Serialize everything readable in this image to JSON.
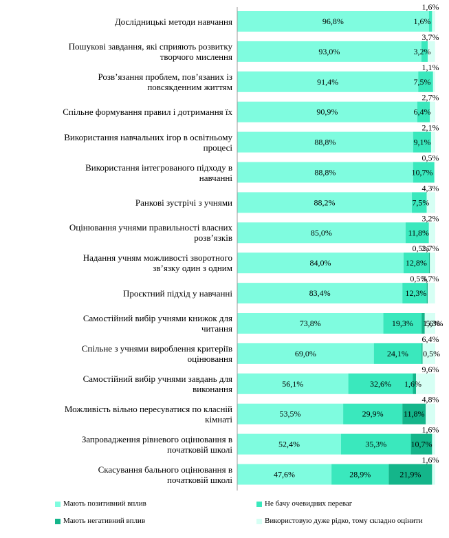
{
  "chart_data": {
    "type": "bar",
    "orientation": "horizontal",
    "stacked": "percent",
    "categories": [
      [
        "Дослідницькі методи навчання"
      ],
      [
        "Пошукові завдання, які сприяють розвитку",
        "творчого мислення"
      ],
      [
        "Розв’язання проблем, пов’язаних із",
        "повсякденним життям"
      ],
      [
        "Спільне формування правил і дотримання їх"
      ],
      [
        "Використання навчальних ігор в освітньому",
        "процесі"
      ],
      [
        "Використання інтегрованого підходу в",
        "навчанні"
      ],
      [
        "Ранкові зустрічі з учнями"
      ],
      [
        "Оцінювання учнями правильності власних",
        "розв’язків"
      ],
      [
        "Надання учням можливості зворотного",
        "зв’язку один з одним"
      ],
      [
        "Проєктний підхід у навчанні"
      ],
      [
        "Самостійний вибір учнями книжок для",
        "читання"
      ],
      [
        "Спільне з учнями вироблення критеріїв",
        "оцінювання"
      ],
      [
        "Самостійний вибір учнями завдань для",
        "виконання"
      ],
      [
        "Можливість вільно пересуватися по класній",
        "кімнаті"
      ],
      [
        "Запровадження рівневого оцінювання в",
        "початковій школі"
      ],
      [
        "Скасування бального оцінювання в",
        "початковій школі"
      ]
    ],
    "series": [
      {
        "name": "Мають позитивний вплив",
        "color": "#7ffcdf",
        "values": [
          96.8,
          93.0,
          91.4,
          90.9,
          88.8,
          88.8,
          88.2,
          85.0,
          84.0,
          83.4,
          73.8,
          69.0,
          56.1,
          53.5,
          52.4,
          47.6
        ],
        "labels": [
          "96,8%",
          "93,0%",
          "91,4%",
          "90,9%",
          "88,8%",
          "88,8%",
          "88,2%",
          "85,0%",
          "84,0%",
          "83,4%",
          "73,8%",
          "69,0%",
          "56,1%",
          "53,5%",
          "52,4%",
          "47,6%"
        ]
      },
      {
        "name": "Не бачу очевидних переваг",
        "color": "#3ae8bd",
        "values": [
          1.6,
          3.2,
          7.5,
          6.4,
          9.1,
          10.7,
          7.5,
          11.8,
          12.8,
          12.3,
          19.3,
          24.1,
          32.6,
          29.9,
          35.3,
          28.9
        ],
        "labels": [
          "1,6%",
          "3,2%",
          "7,5%",
          "6,4%",
          "9,1%",
          "10,7%",
          "7,5%",
          "11,8%",
          "12,8%",
          "12,3%",
          "19,3%",
          "24,1%",
          "32,6%",
          "29,9%",
          "35,3%",
          "28,9%"
        ]
      },
      {
        "name": "Мають негативний вплив",
        "color": "#14b58a",
        "values": [
          0,
          0,
          0,
          0,
          0,
          0,
          0,
          0,
          0.5,
          0.5,
          1.6,
          0.5,
          1.6,
          11.8,
          10.7,
          21.9
        ],
        "labels": [
          "",
          "",
          "",
          "",
          "",
          "",
          "",
          "",
          "0,5%",
          "0,5%",
          "1,6%",
          "0,5%",
          "1,6%",
          "11,8%",
          "10,7%",
          "21,9%"
        ]
      },
      {
        "name": "Використовую дуже рідко, тому складно оцінити",
        "color": "#d6fff4",
        "values": [
          1.6,
          3.7,
          1.1,
          2.7,
          2.1,
          0.5,
          4.3,
          3.2,
          2.7,
          3.7,
          5.3,
          6.4,
          9.6,
          4.8,
          1.6,
          1.6
        ],
        "labels": [
          "1,6%",
          "3,7%",
          "1,1%",
          "2,7%",
          "2,1%",
          "0,5%",
          "4,3%",
          "3,2%",
          "2,7%",
          "3,7%",
          "5,3%",
          "6,4%",
          "9,6%",
          "4,8%",
          "1,6%",
          "1,6%"
        ]
      }
    ],
    "xlim": [
      0,
      100
    ],
    "grid": false,
    "legend_position": "bottom"
  }
}
